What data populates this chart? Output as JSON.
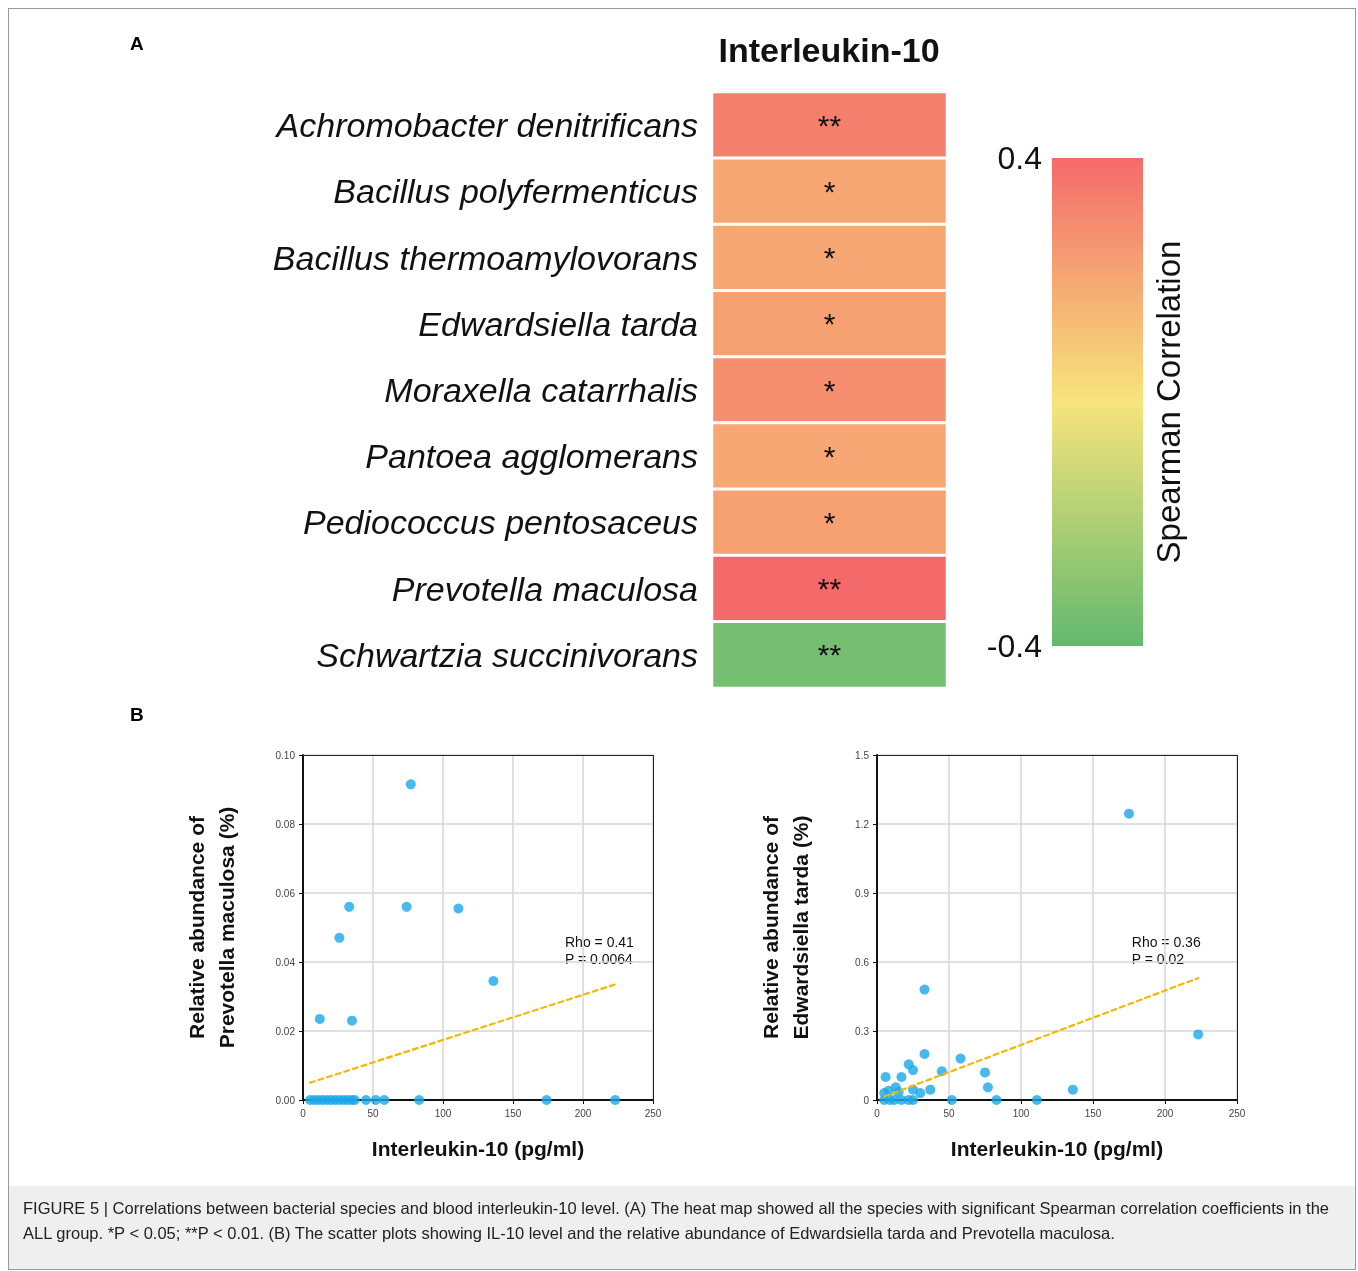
{
  "chart_data": [
    {
      "type": "heatmap",
      "title": "Interleukin-10",
      "clabel": "Spearman Correlation",
      "annotations": [
        "A"
      ],
      "categories": [
        null
      ],
      "y_categories": [
        "Achromobacter denitrificans",
        "Bacillus polyfermenticus",
        "Bacillus thermoamylovorans",
        "Edwardsiella tarda",
        "Moraxella catarrhalis",
        "Pantoea agglomerans",
        "Pediococcus pentosaceus",
        "Prevotella maculosa",
        "Schwartzia succinivorans"
      ],
      "cells": [
        [
          0.33
        ],
        [
          0.2
        ],
        [
          0.2
        ],
        [
          0.22
        ],
        [
          0.28
        ],
        [
          0.2
        ],
        [
          0.22
        ],
        [
          0.4
        ],
        [
          -0.35
        ]
      ],
      "cell_labels": [
        [
          "**"
        ],
        [
          "*"
        ],
        [
          "*"
        ],
        [
          "*"
        ],
        [
          "*"
        ],
        [
          "*"
        ],
        [
          "*"
        ],
        [
          "**"
        ],
        [
          "**"
        ]
      ],
      "clim": [
        -0.4,
        0.4
      ],
      "cticks": [
        -0.4,
        0.4
      ]
    },
    {
      "type": "scatter",
      "xlabel": "Interleukin-10 (pg/ml)",
      "ylabel": "Relative abundance of\nPrevotella maculosa (%)",
      "annotations": [
        "B",
        "Rho = 0.41\nP = 0.0064"
      ],
      "xlim": [
        0,
        250
      ],
      "xticks": [
        0,
        50,
        100,
        150,
        200,
        250
      ],
      "ylim": [
        0,
        0.1
      ],
      "yticks": [
        {
          "value": 0,
          "label": "0.00"
        },
        {
          "value": 0.02,
          "label": "0.02"
        },
        {
          "value": 0.04,
          "label": "0.04"
        },
        {
          "value": 0.06,
          "label": "0.06"
        },
        {
          "value": 0.08,
          "label": "0.08"
        },
        {
          "value": 0.1,
          "label": "0.10"
        }
      ],
      "grid": true,
      "series": [
        {
          "type": "scatter",
          "color": "#1aa7e8",
          "marker": "circle",
          "x": [
            12,
            26,
            33,
            35,
            74,
            77,
            111,
            136,
            5,
            8,
            11,
            14,
            17,
            20,
            23,
            26,
            29,
            32,
            35,
            37,
            45,
            52,
            58,
            83,
            174,
            223
          ],
          "values": [
            0.0235,
            0.047,
            0.056,
            0.023,
            0.056,
            0.0915,
            0.0555,
            0.0345,
            0,
            0,
            0,
            0,
            0,
            0,
            0,
            0,
            0,
            0,
            0,
            0,
            0,
            0,
            0,
            0,
            0,
            0
          ]
        },
        {
          "type": "line",
          "color": "#f5b800",
          "marker": "none",
          "line_style": "dashed",
          "x": [
            5,
            223
          ],
          "values": [
            0.005,
            0.0335
          ]
        }
      ]
    },
    {
      "type": "scatter",
      "xlabel": "Interleukin-10 (pg/ml)",
      "ylabel": "Relative abundance of\nEdwardsiella tarda (%)",
      "annotations": [
        "Rho = 0.36\nP = 0.02",
        "FIGURE 5 | Correlations between bacterial species and blood interleukin-10 level. (A) The heat map showed all the species with significant Spearman correlation coefficients in the ALL group. *P < 0.05; **P < 0.01. (B) The scatter plots showing IL-10 level and the relative abundance of Edwardsiella tarda and Prevotella maculosa."
      ],
      "xlim": [
        0,
        250
      ],
      "xticks": [
        0,
        50,
        100,
        150,
        200,
        250
      ],
      "ylim": [
        0,
        1.5
      ],
      "yticks": [
        0,
        0.3,
        0.6,
        0.9,
        1.2,
        1.5
      ],
      "grid": true,
      "series": [
        {
          "type": "scatter",
          "color": "#1aa7e8",
          "marker": "circle",
          "x": [
            175,
            223,
            33,
            33,
            58,
            22,
            45,
            75,
            25,
            17,
            6,
            13,
            15,
            77,
            136,
            37,
            30,
            25,
            8,
            5,
            5,
            9,
            12,
            17,
            22,
            25,
            52,
            83,
            111
          ],
          "values": [
            1.245,
            0.285,
            0.48,
            0.2,
            0.18,
            0.155,
            0.125,
            0.12,
            0.13,
            0.1,
            0.1,
            0.055,
            0.035,
            0.055,
            0.045,
            0.045,
            0.03,
            0.045,
            0.04,
            0.03,
            0,
            0,
            0,
            0,
            0,
            0,
            0,
            0,
            0
          ]
        },
        {
          "type": "line",
          "color": "#f5b800",
          "marker": "none",
          "line_style": "dashed",
          "x": [
            5,
            223
          ],
          "values": [
            0.015,
            0.53
          ]
        }
      ]
    }
  ]
}
